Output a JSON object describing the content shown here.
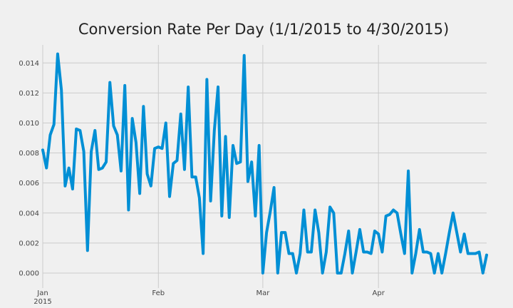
{
  "colors": {
    "background": "#f0f0f0",
    "plot_background": "#f0f0f0",
    "grid": "#cbcbcb",
    "line": "#008fd5",
    "text": "#222222"
  },
  "chart_data": {
    "type": "line",
    "title": "Conversion Rate Per Day (1/1/2015 to 4/30/2015)",
    "xlabel": "",
    "ylabel": "",
    "grid": true,
    "xlim": [
      "2015-01-01",
      "2015-04-30"
    ],
    "ylim": [
      -0.001,
      0.0152
    ],
    "y_ticks": [
      "0.000",
      "0.002",
      "0.004",
      "0.006",
      "0.008",
      "0.010",
      "0.012",
      "0.014"
    ],
    "x_ticks": [
      {
        "date": "2015-01-01",
        "label": "Jan",
        "sublabel": "2015"
      },
      {
        "date": "2015-02-01",
        "label": "Feb",
        "sublabel": ""
      },
      {
        "date": "2015-03-01",
        "label": "Mar",
        "sublabel": ""
      },
      {
        "date": "2015-04-01",
        "label": "Apr",
        "sublabel": ""
      }
    ],
    "series": [
      {
        "x": [
          "2015-01-01",
          "2015-01-02",
          "2015-01-03",
          "2015-01-04",
          "2015-01-05",
          "2015-01-06",
          "2015-01-07",
          "2015-01-08",
          "2015-01-09",
          "2015-01-10",
          "2015-01-11",
          "2015-01-12",
          "2015-01-13",
          "2015-01-14",
          "2015-01-15",
          "2015-01-16",
          "2015-01-17",
          "2015-01-18",
          "2015-01-19",
          "2015-01-20",
          "2015-01-21",
          "2015-01-22",
          "2015-01-23",
          "2015-01-24",
          "2015-01-25",
          "2015-01-26",
          "2015-01-27",
          "2015-01-28",
          "2015-01-29",
          "2015-01-30",
          "2015-01-31",
          "2015-02-01",
          "2015-02-02",
          "2015-02-03",
          "2015-02-04",
          "2015-02-05",
          "2015-02-06",
          "2015-02-07",
          "2015-02-08",
          "2015-02-09",
          "2015-02-10",
          "2015-02-11",
          "2015-02-12",
          "2015-02-13",
          "2015-02-14",
          "2015-02-15",
          "2015-02-16",
          "2015-02-17",
          "2015-02-18",
          "2015-02-19",
          "2015-02-20",
          "2015-02-21",
          "2015-02-22",
          "2015-02-23",
          "2015-02-24",
          "2015-02-25",
          "2015-02-26",
          "2015-02-27",
          "2015-02-28",
          "2015-03-01",
          "2015-03-02",
          "2015-03-03",
          "2015-03-04",
          "2015-03-05",
          "2015-03-06",
          "2015-03-07",
          "2015-03-08",
          "2015-03-09",
          "2015-03-10",
          "2015-03-11",
          "2015-03-12",
          "2015-03-13",
          "2015-03-14",
          "2015-03-15",
          "2015-03-16",
          "2015-03-17",
          "2015-03-18",
          "2015-03-19",
          "2015-03-20",
          "2015-03-21",
          "2015-03-22",
          "2015-03-23",
          "2015-03-24",
          "2015-03-25",
          "2015-03-26",
          "2015-03-27",
          "2015-03-28",
          "2015-03-29",
          "2015-03-30",
          "2015-03-31",
          "2015-04-01",
          "2015-04-02",
          "2015-04-03",
          "2015-04-04",
          "2015-04-05",
          "2015-04-06",
          "2015-04-07",
          "2015-04-08",
          "2015-04-09",
          "2015-04-10",
          "2015-04-11",
          "2015-04-12",
          "2015-04-13",
          "2015-04-14",
          "2015-04-15",
          "2015-04-16",
          "2015-04-17",
          "2015-04-18",
          "2015-04-19",
          "2015-04-20",
          "2015-04-21",
          "2015-04-22",
          "2015-04-23",
          "2015-04-24",
          "2015-04-25",
          "2015-04-26",
          "2015-04-27",
          "2015-04-28",
          "2015-04-29",
          "2015-04-30"
        ],
        "y": [
          0.0082,
          0.007,
          0.0092,
          0.0099,
          0.0146,
          0.0122,
          0.0058,
          0.007,
          0.0056,
          0.0096,
          0.0095,
          0.0081,
          0.0015,
          0.0081,
          0.0095,
          0.0069,
          0.007,
          0.0074,
          0.0127,
          0.0098,
          0.0092,
          0.0068,
          0.0125,
          0.0042,
          0.0103,
          0.0087,
          0.0053,
          0.0111,
          0.0066,
          0.0058,
          0.0083,
          0.0084,
          0.0083,
          0.01,
          0.0051,
          0.0073,
          0.0075,
          0.0106,
          0.0069,
          0.0124,
          0.0064,
          0.0064,
          0.005,
          0.0013,
          0.0129,
          0.0048,
          0.0095,
          0.0124,
          0.0038,
          0.0091,
          0.0037,
          0.0085,
          0.0073,
          0.0074,
          0.0145,
          0.0061,
          0.0074,
          0.0038,
          0.0085,
          0.0,
          0.0027,
          0.0041,
          0.0057,
          0.0,
          0.0027,
          0.0027,
          0.0013,
          0.0013,
          0.0,
          0.0013,
          0.0042,
          0.0014,
          0.0014,
          0.0042,
          0.0027,
          0.0,
          0.0014,
          0.0044,
          0.004,
          0.0,
          0.0,
          0.0013,
          0.0028,
          0.0,
          0.0014,
          0.0029,
          0.0014,
          0.0014,
          0.0013,
          0.0028,
          0.0026,
          0.0014,
          0.0038,
          0.0039,
          0.0042,
          0.004,
          0.0026,
          0.0013,
          0.0068,
          0.0,
          0.0013,
          0.0029,
          0.0014,
          0.0014,
          0.0013,
          0.0,
          0.0013,
          0.0,
          0.0013,
          0.0027,
          0.004,
          0.0027,
          0.0014,
          0.0026,
          0.0013,
          0.0013,
          0.0013,
          0.0014,
          0.0,
          0.0012
        ]
      }
    ]
  }
}
